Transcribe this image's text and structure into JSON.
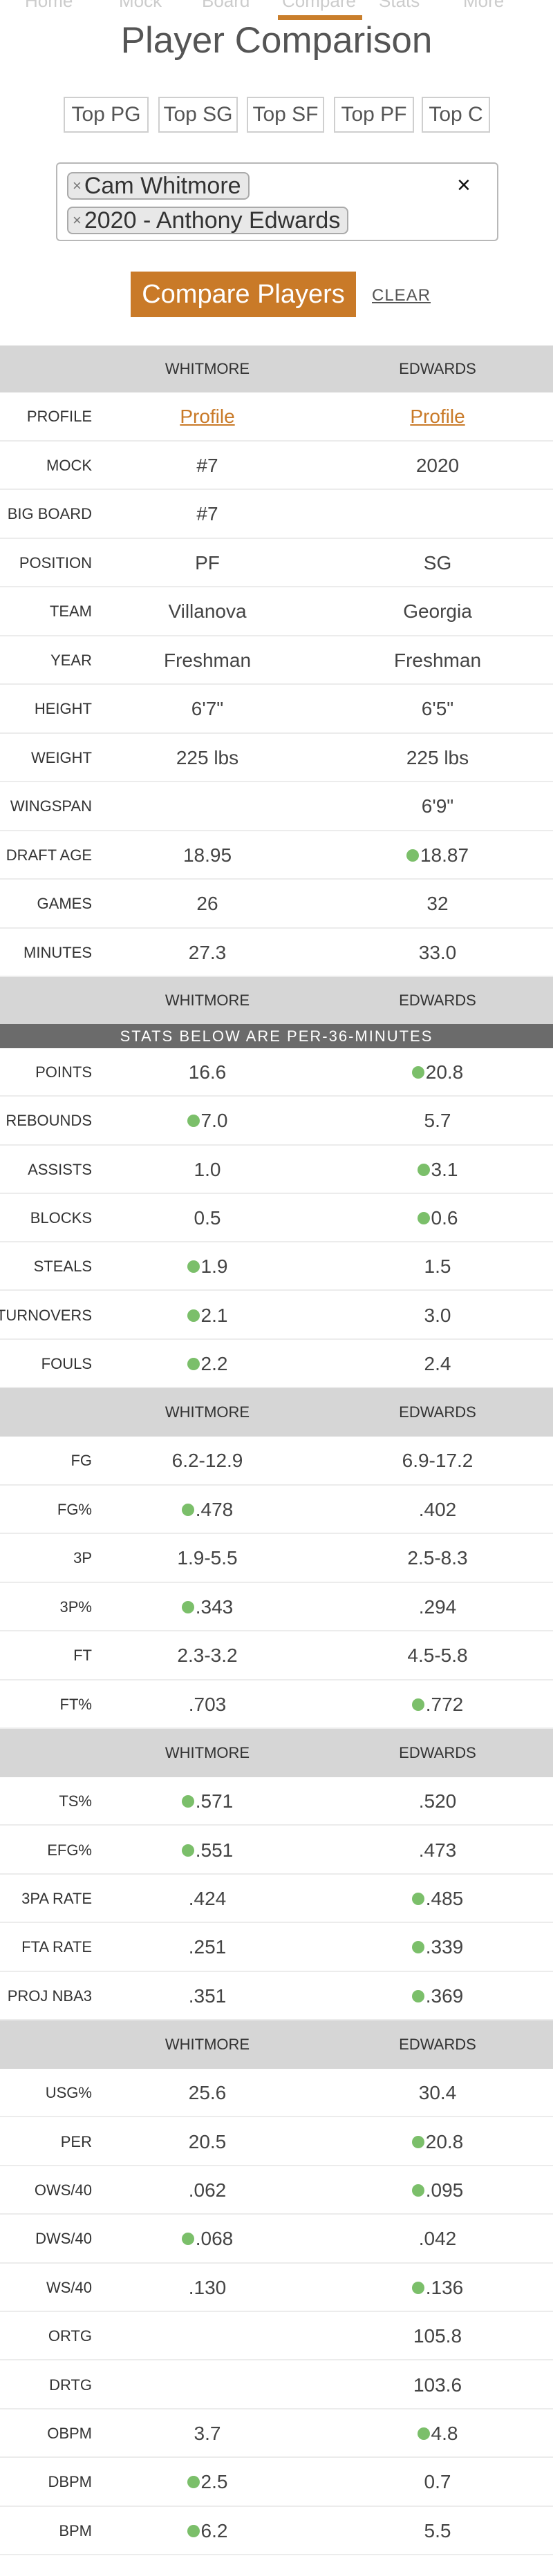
{
  "nav": {
    "items": [
      "Home",
      "Mock",
      "Board",
      "Compare",
      "Stats",
      "More"
    ]
  },
  "page_title": "Player Comparison",
  "position_buttons": [
    "Top PG",
    "Top SG",
    "Top SF",
    "Top PF",
    "Top C"
  ],
  "chooser": {
    "selected": [
      "Cam Whitmore",
      "2020 - Anthony Edwards"
    ],
    "remove_glyph": "×",
    "clear_glyph": "×"
  },
  "compare_button": "Compare Players",
  "clear_link": "CLEAR",
  "colors": {
    "accent": "#c97a28",
    "highlight_dot": "#7bbf6a",
    "header_bg": "#d6d6d6",
    "banner_bg": "#6b6b6b"
  },
  "columns": {
    "p1": "WHITMORE",
    "p2": "EDWARDS"
  },
  "banner": "STATS BELOW ARE PER-36-MINUTES",
  "sections": {
    "bio": [
      {
        "label": "PROFILE",
        "p1": "Profile",
        "p2": "Profile",
        "link": true
      },
      {
        "label": "MOCK",
        "p1": "#7",
        "p2": "2020"
      },
      {
        "label": "BIG BOARD",
        "p1": "#7",
        "p2": ""
      },
      {
        "label": "POSITION",
        "p1": "PF",
        "p2": "SG"
      },
      {
        "label": "TEAM",
        "p1": "Villanova",
        "p2": "Georgia"
      },
      {
        "label": "YEAR",
        "p1": "Freshman",
        "p2": "Freshman"
      },
      {
        "label": "HEIGHT",
        "p1": "6'7\"",
        "p2": "6'5\""
      },
      {
        "label": "WEIGHT",
        "p1": "225 lbs",
        "p2": "225 lbs"
      },
      {
        "label": "WINGSPAN",
        "p1": "",
        "p2": "6'9\""
      },
      {
        "label": "DRAFT AGE",
        "p1": "18.95",
        "p2": "18.87",
        "best": 2
      },
      {
        "label": "GAMES",
        "p1": "26",
        "p2": "32"
      },
      {
        "label": "MINUTES",
        "p1": "27.3",
        "p2": "33.0"
      }
    ],
    "per36": [
      {
        "label": "POINTS",
        "p1": "16.6",
        "p2": "20.8",
        "best": 2
      },
      {
        "label": "REBOUNDS",
        "p1": "7.0",
        "p2": "5.7",
        "best": 1
      },
      {
        "label": "ASSISTS",
        "p1": "1.0",
        "p2": "3.1",
        "best": 2
      },
      {
        "label": "BLOCKS",
        "p1": "0.5",
        "p2": "0.6",
        "best": 2
      },
      {
        "label": "STEALS",
        "p1": "1.9",
        "p2": "1.5",
        "best": 1
      },
      {
        "label": "TURNOVERS",
        "p1": "2.1",
        "p2": "3.0",
        "best": 1
      },
      {
        "label": "FOULS",
        "p1": "2.2",
        "p2": "2.4",
        "best": 1
      }
    ],
    "shooting": [
      {
        "label": "FG",
        "p1": "6.2-12.9",
        "p2": "6.9-17.2"
      },
      {
        "label": "FG%",
        "p1": ".478",
        "p2": ".402",
        "best": 1
      },
      {
        "label": "3P",
        "p1": "1.9-5.5",
        "p2": "2.5-8.3"
      },
      {
        "label": "3P%",
        "p1": ".343",
        "p2": ".294",
        "best": 1
      },
      {
        "label": "FT",
        "p1": "2.3-3.2",
        "p2": "4.5-5.8"
      },
      {
        "label": "FT%",
        "p1": ".703",
        "p2": ".772",
        "best": 2
      }
    ],
    "efficiency": [
      {
        "label": "TS%",
        "p1": ".571",
        "p2": ".520",
        "best": 1
      },
      {
        "label": "EFG%",
        "p1": ".551",
        "p2": ".473",
        "best": 1
      },
      {
        "label": "3PA RATE",
        "p1": ".424",
        "p2": ".485",
        "best": 2
      },
      {
        "label": "FTA RATE",
        "p1": ".251",
        "p2": ".339",
        "best": 2
      },
      {
        "label": "PROJ NBA3",
        "p1": ".351",
        "p2": ".369",
        "best": 2
      }
    ],
    "advanced": [
      {
        "label": "USG%",
        "p1": "25.6",
        "p2": "30.4"
      },
      {
        "label": "PER",
        "p1": "20.5",
        "p2": "20.8",
        "best": 2
      },
      {
        "label": "OWS/40",
        "p1": ".062",
        "p2": ".095",
        "best": 2
      },
      {
        "label": "DWS/40",
        "p1": ".068",
        "p2": ".042",
        "best": 1
      },
      {
        "label": "WS/40",
        "p1": ".130",
        "p2": ".136",
        "best": 2
      },
      {
        "label": "ORTG",
        "p1": "",
        "p2": "105.8"
      },
      {
        "label": "DRTG",
        "p1": "",
        "p2": "103.6"
      },
      {
        "label": "OBPM",
        "p1": "3.7",
        "p2": "4.8",
        "best": 2
      },
      {
        "label": "DBPM",
        "p1": "2.5",
        "p2": "0.7",
        "best": 1
      },
      {
        "label": "BPM",
        "p1": "6.2",
        "p2": "5.5",
        "best": 1
      }
    ]
  }
}
